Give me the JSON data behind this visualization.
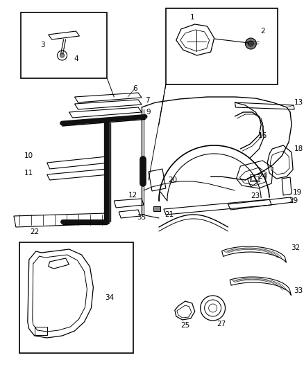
{
  "bg_color": "#ffffff",
  "lc": "#000000",
  "figsize": [
    4.38,
    5.33
  ],
  "dpi": 100,
  "label_fs": 7.5
}
